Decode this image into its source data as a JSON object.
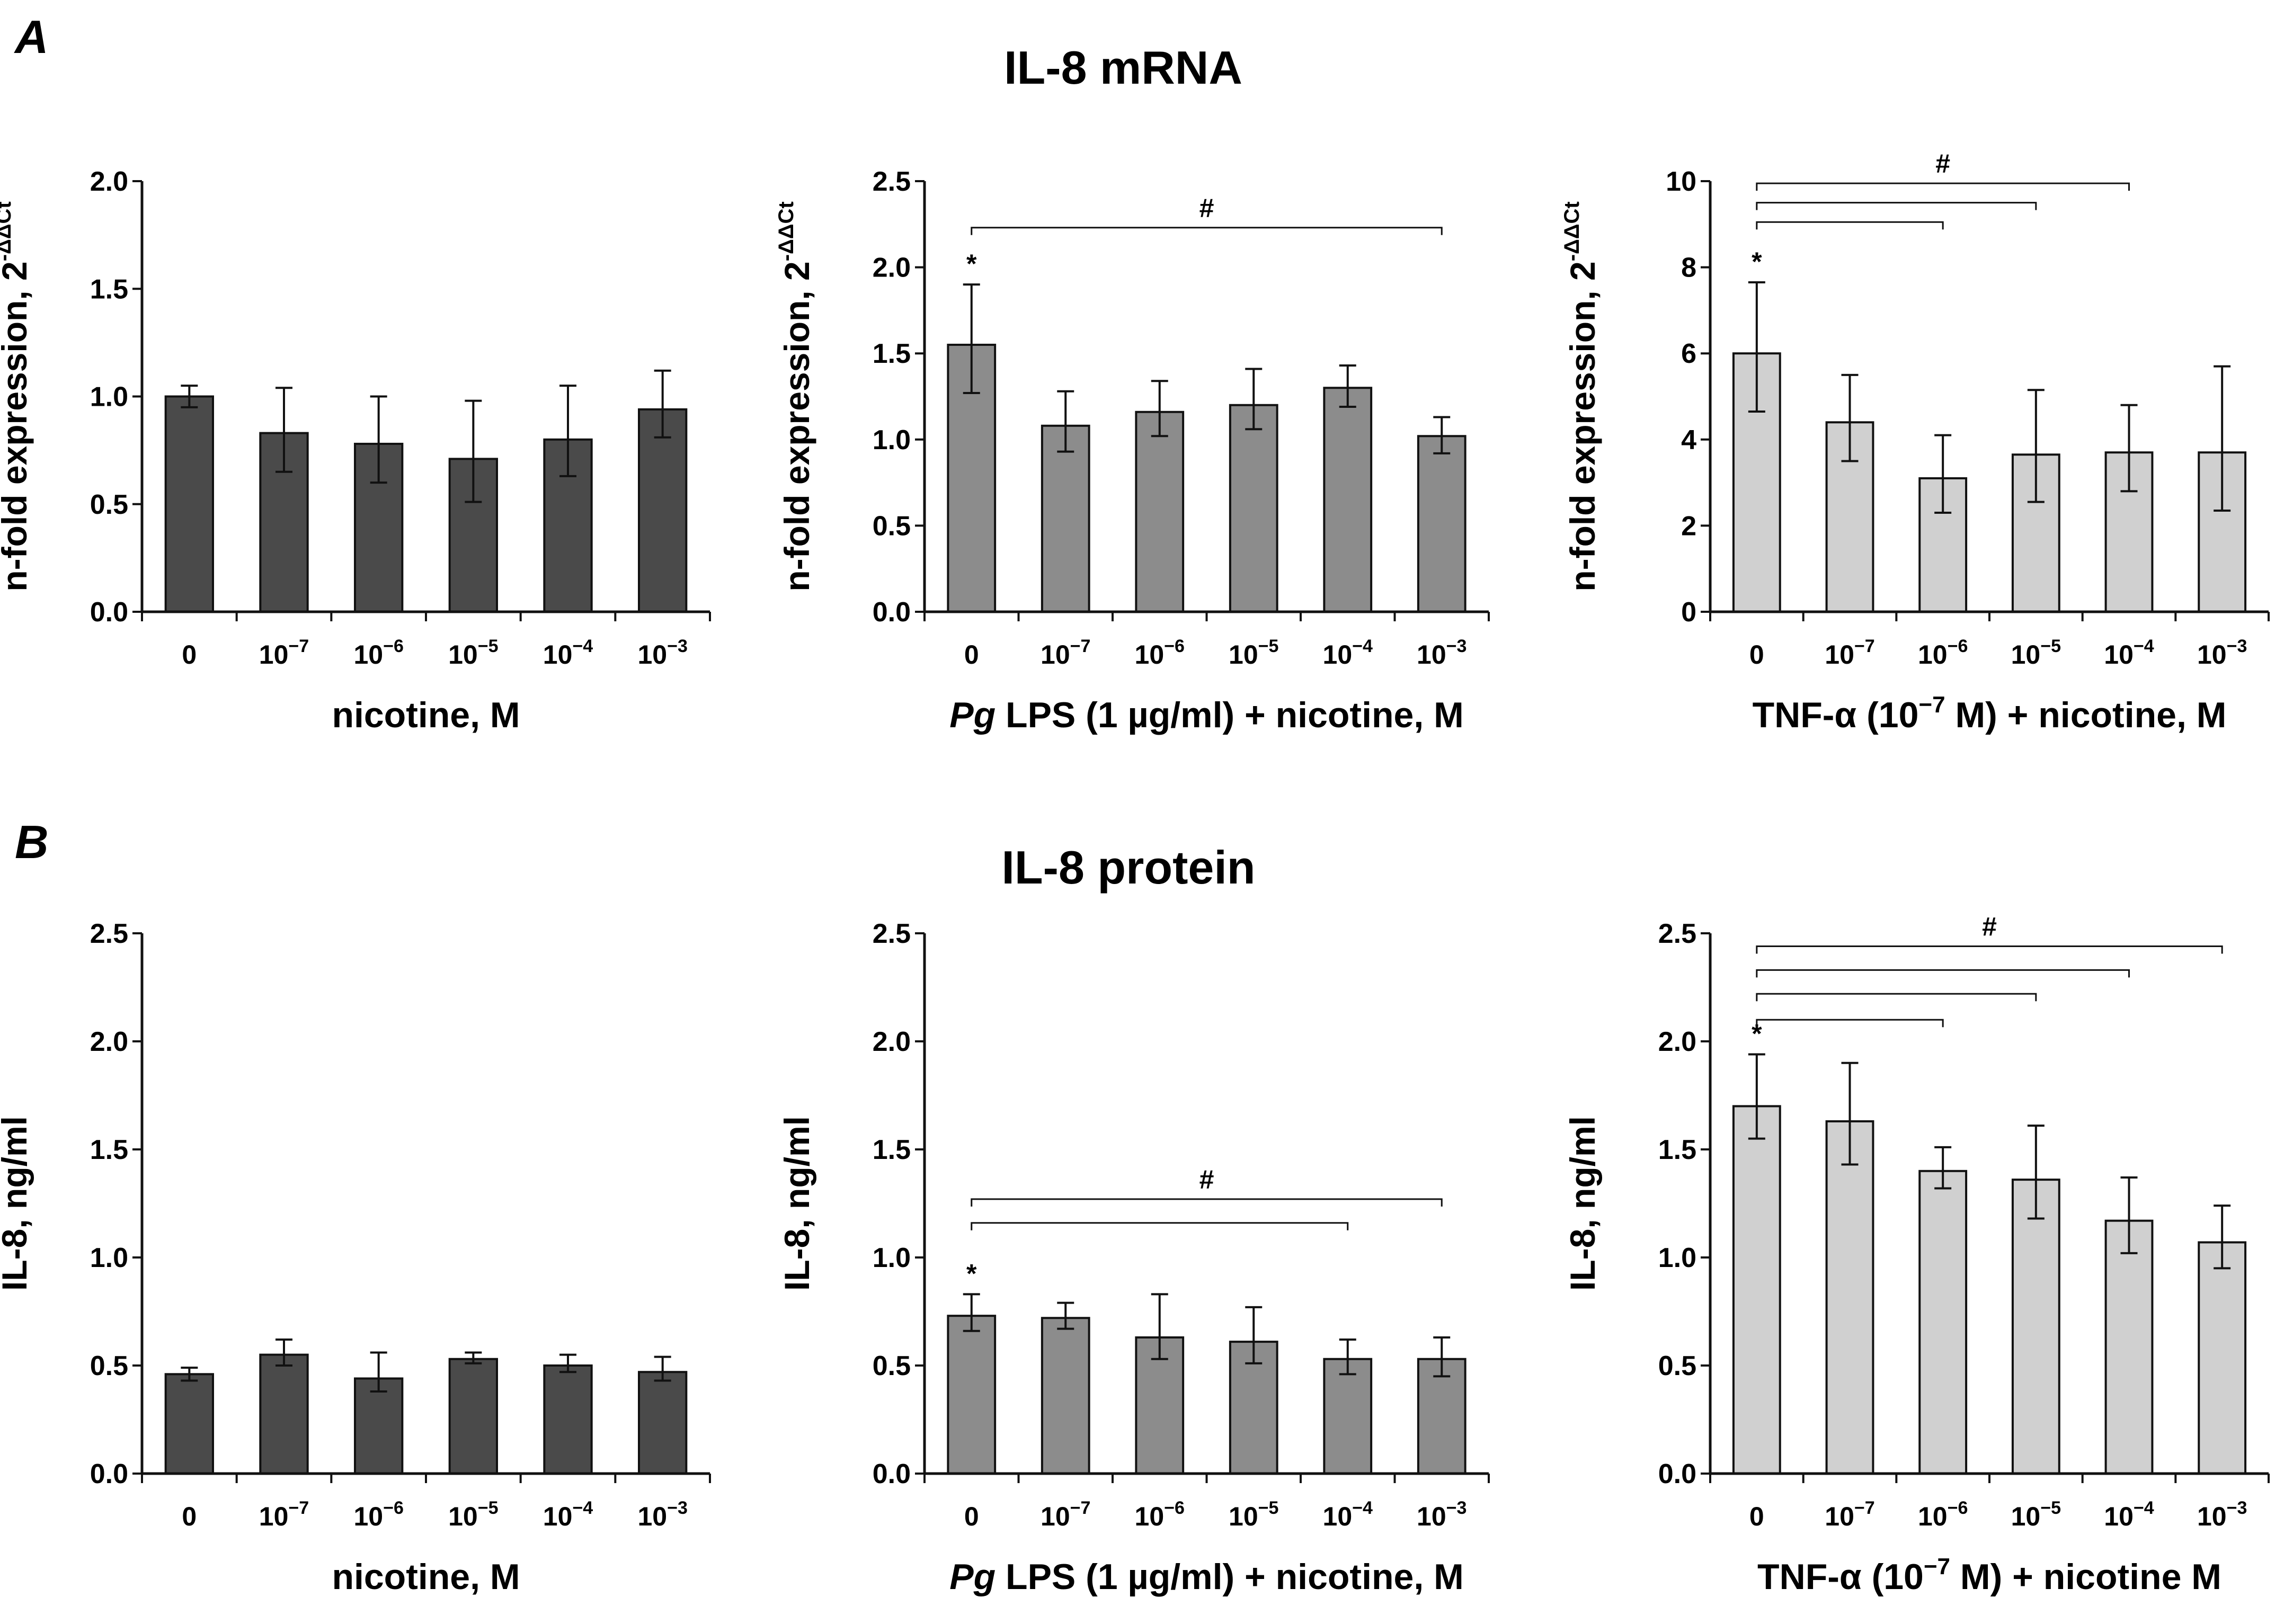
{
  "figure": {
    "rows": [
      {
        "letter": "A",
        "title": "IL-8 mRNA"
      },
      {
        "letter": "B",
        "title": "IL-8 protein"
      }
    ]
  },
  "chart_data": [
    {
      "type": "bar",
      "row": 0,
      "col": 0,
      "color": "#4a4a4a",
      "categories": [
        "0",
        "10-7",
        "10-6",
        "10-5",
        "10-4",
        "10-3"
      ],
      "values": [
        1.0,
        0.83,
        0.78,
        0.71,
        0.8,
        0.94
      ],
      "error_low": [
        0.05,
        0.18,
        0.18,
        0.2,
        0.17,
        0.13
      ],
      "error_high": [
        0.05,
        0.21,
        0.22,
        0.27,
        0.25,
        0.18
      ],
      "ylim": [
        0,
        2.0
      ],
      "yticks": [
        "0.0",
        "0.5",
        "1.0",
        "1.5",
        "2.0"
      ],
      "ylabel": "n-fold expression, 2",
      "ylabel_sup": "-ΔΔCt",
      "xlabel": "nicotine, M",
      "xlabel_italic": "",
      "xlabel_sup": "",
      "xlabel_tail": "",
      "star": "",
      "hash": "",
      "brackets": []
    },
    {
      "type": "bar",
      "row": 0,
      "col": 1,
      "color": "#8c8c8c",
      "categories": [
        "0",
        "10-7",
        "10-6",
        "10-5",
        "10-4",
        "10-3"
      ],
      "values": [
        1.55,
        1.08,
        1.16,
        1.2,
        1.3,
        1.02
      ],
      "error_low": [
        0.28,
        0.15,
        0.14,
        0.14,
        0.11,
        0.1
      ],
      "error_high": [
        0.35,
        0.2,
        0.18,
        0.21,
        0.13,
        0.11
      ],
      "ylim": [
        0,
        2.5
      ],
      "yticks": [
        "0.0",
        "0.5",
        "1.0",
        "1.5",
        "2.0",
        "2.5"
      ],
      "ylabel": "n-fold expression, 2",
      "ylabel_sup": "-ΔΔCt",
      "xlabel": " LPS (1 µg/ml) + nicotine, M",
      "xlabel_italic": "Pg",
      "xlabel_sup": "",
      "xlabel_tail": "",
      "star": "*",
      "hash": "#",
      "brackets": [
        {
          "from": 0,
          "to": 5,
          "y": 2.23
        }
      ]
    },
    {
      "type": "bar",
      "row": 0,
      "col": 2,
      "color": "#d0d0d0",
      "categories": [
        "0",
        "10-7",
        "10-6",
        "10-5",
        "10-4",
        "10-3"
      ],
      "values": [
        6.0,
        4.4,
        3.1,
        3.65,
        3.7,
        3.7
      ],
      "error_low": [
        1.35,
        0.9,
        0.8,
        1.1,
        0.9,
        1.35
      ],
      "error_high": [
        1.65,
        1.1,
        1.0,
        1.5,
        1.1,
        2.0
      ],
      "ylim": [
        0,
        10
      ],
      "yticks": [
        "0",
        "2",
        "4",
        "6",
        "8",
        "10"
      ],
      "ylabel": "n-fold expression, 2",
      "ylabel_sup": "-ΔΔCt",
      "xlabel": "TNF-α (10",
      "xlabel_italic": "",
      "xlabel_sup": "-7",
      "xlabel_tail": " M) + nicotine, M",
      "star": "*",
      "hash": "#",
      "brackets": [
        {
          "from": 0,
          "to": 2,
          "y": 9.05
        },
        {
          "from": 0,
          "to": 3,
          "y": 9.5
        },
        {
          "from": 0,
          "to": 4,
          "y": 9.95
        }
      ]
    },
    {
      "type": "bar",
      "row": 1,
      "col": 0,
      "color": "#4a4a4a",
      "categories": [
        "0",
        "10-7",
        "10-6",
        "10-5",
        "10-4",
        "10-3"
      ],
      "values": [
        0.46,
        0.55,
        0.44,
        0.53,
        0.5,
        0.47
      ],
      "error_low": [
        0.03,
        0.05,
        0.06,
        0.02,
        0.03,
        0.04
      ],
      "error_high": [
        0.03,
        0.07,
        0.12,
        0.03,
        0.05,
        0.07
      ],
      "ylim": [
        0,
        2.5
      ],
      "yticks": [
        "0.0",
        "0.5",
        "1.0",
        "1.5",
        "2.0",
        "2.5"
      ],
      "ylabel": "IL-8, ng/ml",
      "ylabel_sup": "",
      "xlabel": "nicotine, M",
      "xlabel_italic": "",
      "xlabel_sup": "",
      "xlabel_tail": "",
      "star": "",
      "hash": "",
      "brackets": []
    },
    {
      "type": "bar",
      "row": 1,
      "col": 1,
      "color": "#8c8c8c",
      "categories": [
        "0",
        "10-7",
        "10-6",
        "10-5",
        "10-4",
        "10-3"
      ],
      "values": [
        0.73,
        0.72,
        0.63,
        0.61,
        0.53,
        0.53
      ],
      "error_low": [
        0.07,
        0.05,
        0.1,
        0.1,
        0.07,
        0.08
      ],
      "error_high": [
        0.1,
        0.07,
        0.2,
        0.16,
        0.09,
        0.1
      ],
      "ylim": [
        0,
        2.5
      ],
      "yticks": [
        "0.0",
        "0.5",
        "1.0",
        "1.5",
        "2.0",
        "2.5"
      ],
      "ylabel": "IL-8, ng/ml",
      "ylabel_sup": "",
      "xlabel": " LPS (1 µg/ml) + nicotine, M",
      "xlabel_italic": "Pg",
      "xlabel_sup": "",
      "xlabel_tail": "",
      "star": "*",
      "hash": "#",
      "brackets": [
        {
          "from": 0,
          "to": 4,
          "y": 1.16
        },
        {
          "from": 0,
          "to": 5,
          "y": 1.27
        }
      ]
    },
    {
      "type": "bar",
      "row": 1,
      "col": 2,
      "color": "#d0d0d0",
      "categories": [
        "0",
        "10-7",
        "10-6",
        "10-5",
        "10-4",
        "10-3"
      ],
      "values": [
        1.7,
        1.63,
        1.4,
        1.36,
        1.17,
        1.07
      ],
      "error_low": [
        0.15,
        0.2,
        0.08,
        0.18,
        0.15,
        0.12
      ],
      "error_high": [
        0.24,
        0.27,
        0.11,
        0.25,
        0.2,
        0.17
      ],
      "ylim": [
        0,
        2.5
      ],
      "yticks": [
        "0.0",
        "0.5",
        "1.0",
        "1.5",
        "2.0",
        "2.5"
      ],
      "ylabel": "IL-8, ng/ml",
      "ylabel_sup": "",
      "xlabel": "TNF-α (10",
      "xlabel_italic": "",
      "xlabel_sup": "-7",
      "xlabel_tail": " M) + nicotine M",
      "star": "*",
      "hash": "#",
      "brackets": [
        {
          "from": 0,
          "to": 2,
          "y": 2.1
        },
        {
          "from": 0,
          "to": 3,
          "y": 2.22
        },
        {
          "from": 0,
          "to": 4,
          "y": 2.33
        },
        {
          "from": 0,
          "to": 5,
          "y": 2.44
        }
      ]
    }
  ]
}
